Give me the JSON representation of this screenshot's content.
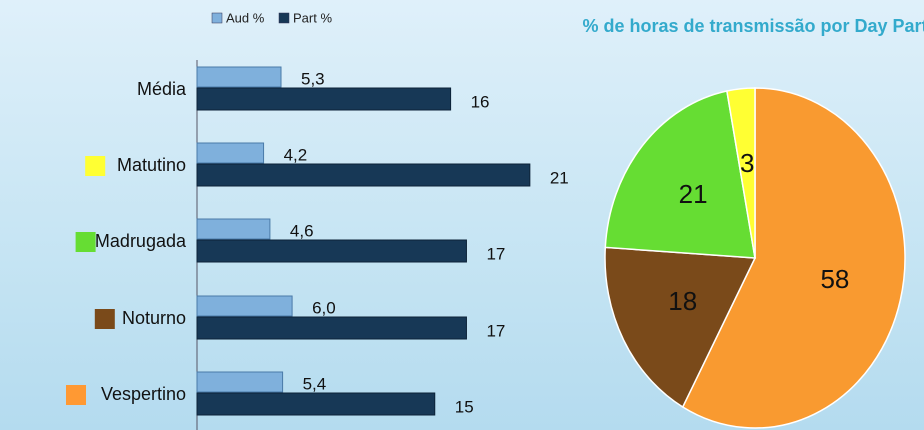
{
  "chart_data": [
    {
      "type": "bar",
      "orientation": "horizontal",
      "categories": [
        "Média",
        "Matutino",
        "Madrugada",
        "Noturno",
        "Vespertino"
      ],
      "category_colors": [
        null,
        "#ffff33",
        "#66dd33",
        "#7a4a1a",
        "#ff9933"
      ],
      "series": [
        {
          "name": "Aud %",
          "color": "#7fb0dc",
          "values": [
            5.3,
            4.2,
            4.6,
            6.0,
            5.4
          ],
          "value_labels": [
            "5,3",
            "4,2",
            "4,6",
            "6,0",
            "5,4"
          ]
        },
        {
          "name": "Part %",
          "color": "#173856",
          "values": [
            16,
            21,
            17,
            17,
            15
          ]
        }
      ]
    },
    {
      "type": "pie",
      "title": "% de horas de transmissão por Day Part",
      "values": [
        58,
        18,
        21,
        3
      ],
      "colors": [
        "#f99a30",
        "#7a4a1a",
        "#66dd33",
        "#ffff33"
      ]
    }
  ]
}
